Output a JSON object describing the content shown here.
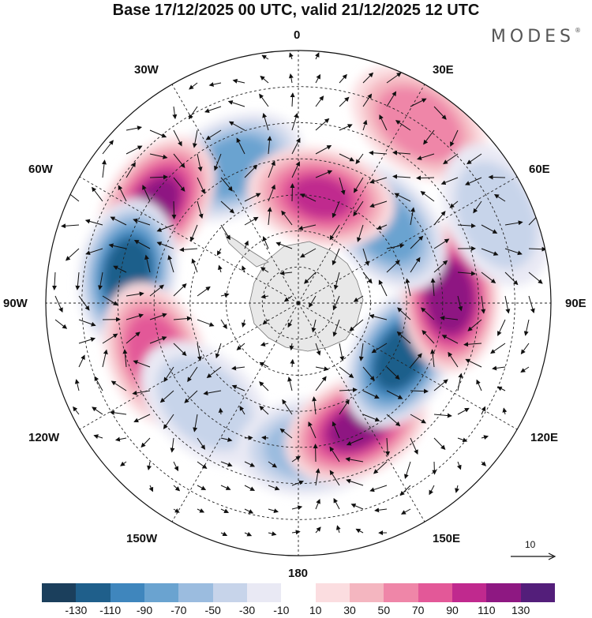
{
  "title": "Base 17/12/2025 00 UTC, valid 21/12/2025 12 UTC",
  "brand": "MODES",
  "brand_mark": "®",
  "longitude_labels": {
    "lon_0": "0",
    "lon_30e": "30E",
    "lon_60e": "60E",
    "lon_90e": "90E",
    "lon_120e": "120E",
    "lon_150e": "150E",
    "lon_180": "180",
    "lon_150w": "150W",
    "lon_120w": "120W",
    "lon_90w": "90W",
    "lon_60w": "60W",
    "lon_30w": "30W"
  },
  "reference_vector": {
    "label": "10"
  },
  "colorbar": {
    "colors": [
      "#1b3f5c",
      "#1f5f8b",
      "#3f86bd",
      "#6aa3d0",
      "#9bbcdf",
      "#c7d4ea",
      "#e9e9f4",
      "#ffffff",
      "#fbdde0",
      "#f4b6c0",
      "#ef86a8",
      "#e35898",
      "#c0298e",
      "#8e1882",
      "#531e7a"
    ],
    "ticks": [
      "-130",
      "-110",
      "-90",
      "-70",
      "-50",
      "-30",
      "-10",
      "10",
      "30",
      "50",
      "70",
      "90",
      "110",
      "130"
    ]
  },
  "anomaly_centers": [
    {
      "name": "low-30w",
      "lon": -26,
      "lat": -48,
      "value": -80
    },
    {
      "name": "high-55w",
      "lon": -55,
      "lat": -42,
      "value": 110
    },
    {
      "name": "low-80w",
      "lon": -80,
      "lat": -42,
      "value": -120
    },
    {
      "name": "high-110w",
      "lon": -110,
      "lat": -48,
      "value": 85
    },
    {
      "name": "low-130w",
      "lon": -137,
      "lat": -52,
      "value": -40
    },
    {
      "name": "low-170e",
      "lon": 175,
      "lat": -50,
      "value": -55
    },
    {
      "name": "high-150e",
      "lon": 155,
      "lat": -52,
      "value": 110
    },
    {
      "name": "low-120e",
      "lon": 118,
      "lat": -58,
      "value": -120
    },
    {
      "name": "high-90e",
      "lon": 88,
      "lat": -48,
      "value": 120
    },
    {
      "name": "low-50e",
      "lon": 48,
      "lat": -58,
      "value": -90
    },
    {
      "name": "high-10e",
      "lon": 12,
      "lat": -60,
      "value": 90
    },
    {
      "name": "high-35e",
      "lon": 34,
      "lat": -30,
      "value": 55
    },
    {
      "name": "low-60e-north",
      "lon": 66,
      "lat": -30,
      "value": -40
    }
  ]
}
